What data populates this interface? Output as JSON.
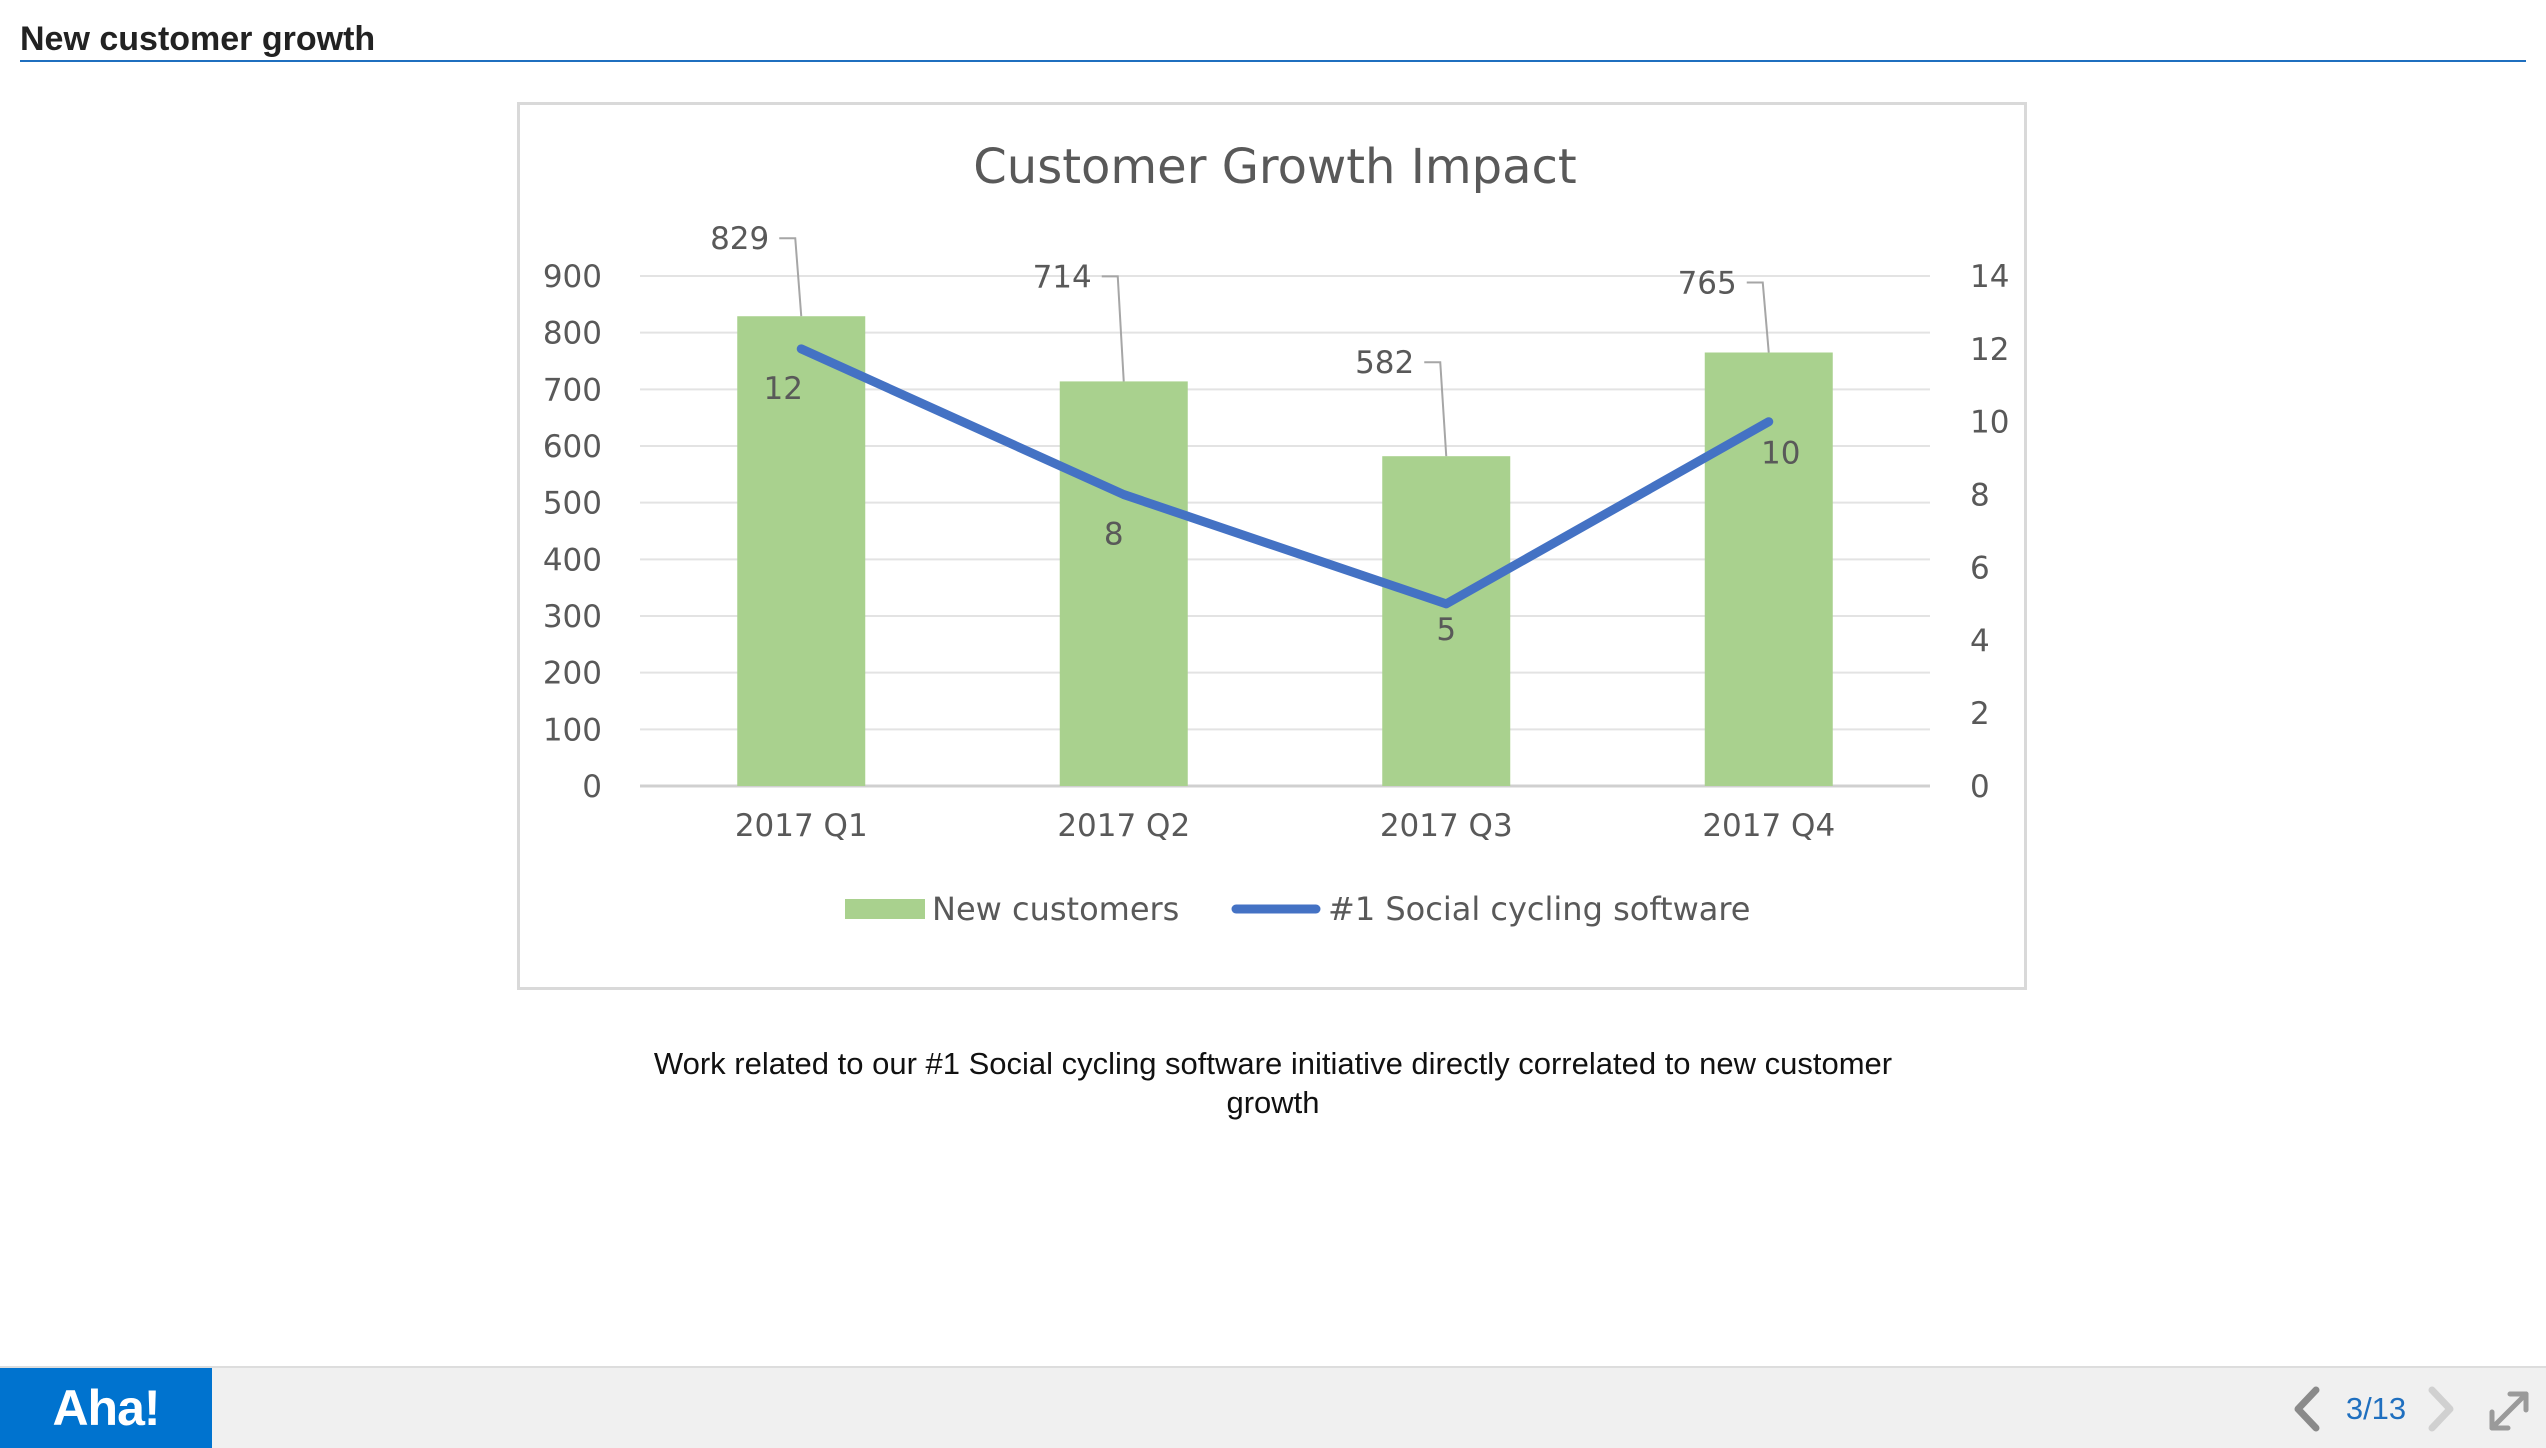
{
  "header": {
    "title": "New customer growth"
  },
  "chart_data": {
    "type": "bar",
    "title": "Customer Growth Impact",
    "categories": [
      "2017 Q1",
      "2017 Q2",
      "2017 Q3",
      "2017 Q4"
    ],
    "series": [
      {
        "name": "New customers",
        "type": "bar",
        "axis": "left",
        "values": [
          829,
          714,
          582,
          765
        ],
        "labels": [
          "829",
          "714",
          "582",
          "765"
        ],
        "color": "#a9d18e"
      },
      {
        "name": "#1 Social cycling software",
        "type": "line",
        "axis": "right",
        "values": [
          12,
          8,
          5,
          10
        ],
        "labels": [
          "12",
          "8",
          "5",
          "10"
        ],
        "color": "#4472c4"
      }
    ],
    "y_left": {
      "ylim": [
        0,
        900
      ],
      "ticks": [
        "0",
        "100",
        "200",
        "300",
        "400",
        "500",
        "600",
        "700",
        "800",
        "900"
      ]
    },
    "y_right": {
      "ylim": [
        0,
        14
      ],
      "ticks": [
        "0",
        "2",
        "4",
        "6",
        "8",
        "10",
        "12",
        "14"
      ]
    },
    "grid": true,
    "legend_position": "bottom"
  },
  "caption": "Work related to our #1 Social cycling software initiative directly correlated to new customer growth",
  "footer": {
    "logo": "Aha!",
    "page_indicator": "3/13",
    "prev_icon": "chevron-left-icon",
    "next_icon": "chevron-right-icon",
    "fullscreen_icon": "expand-icon",
    "accent_color": "#0073cf"
  }
}
